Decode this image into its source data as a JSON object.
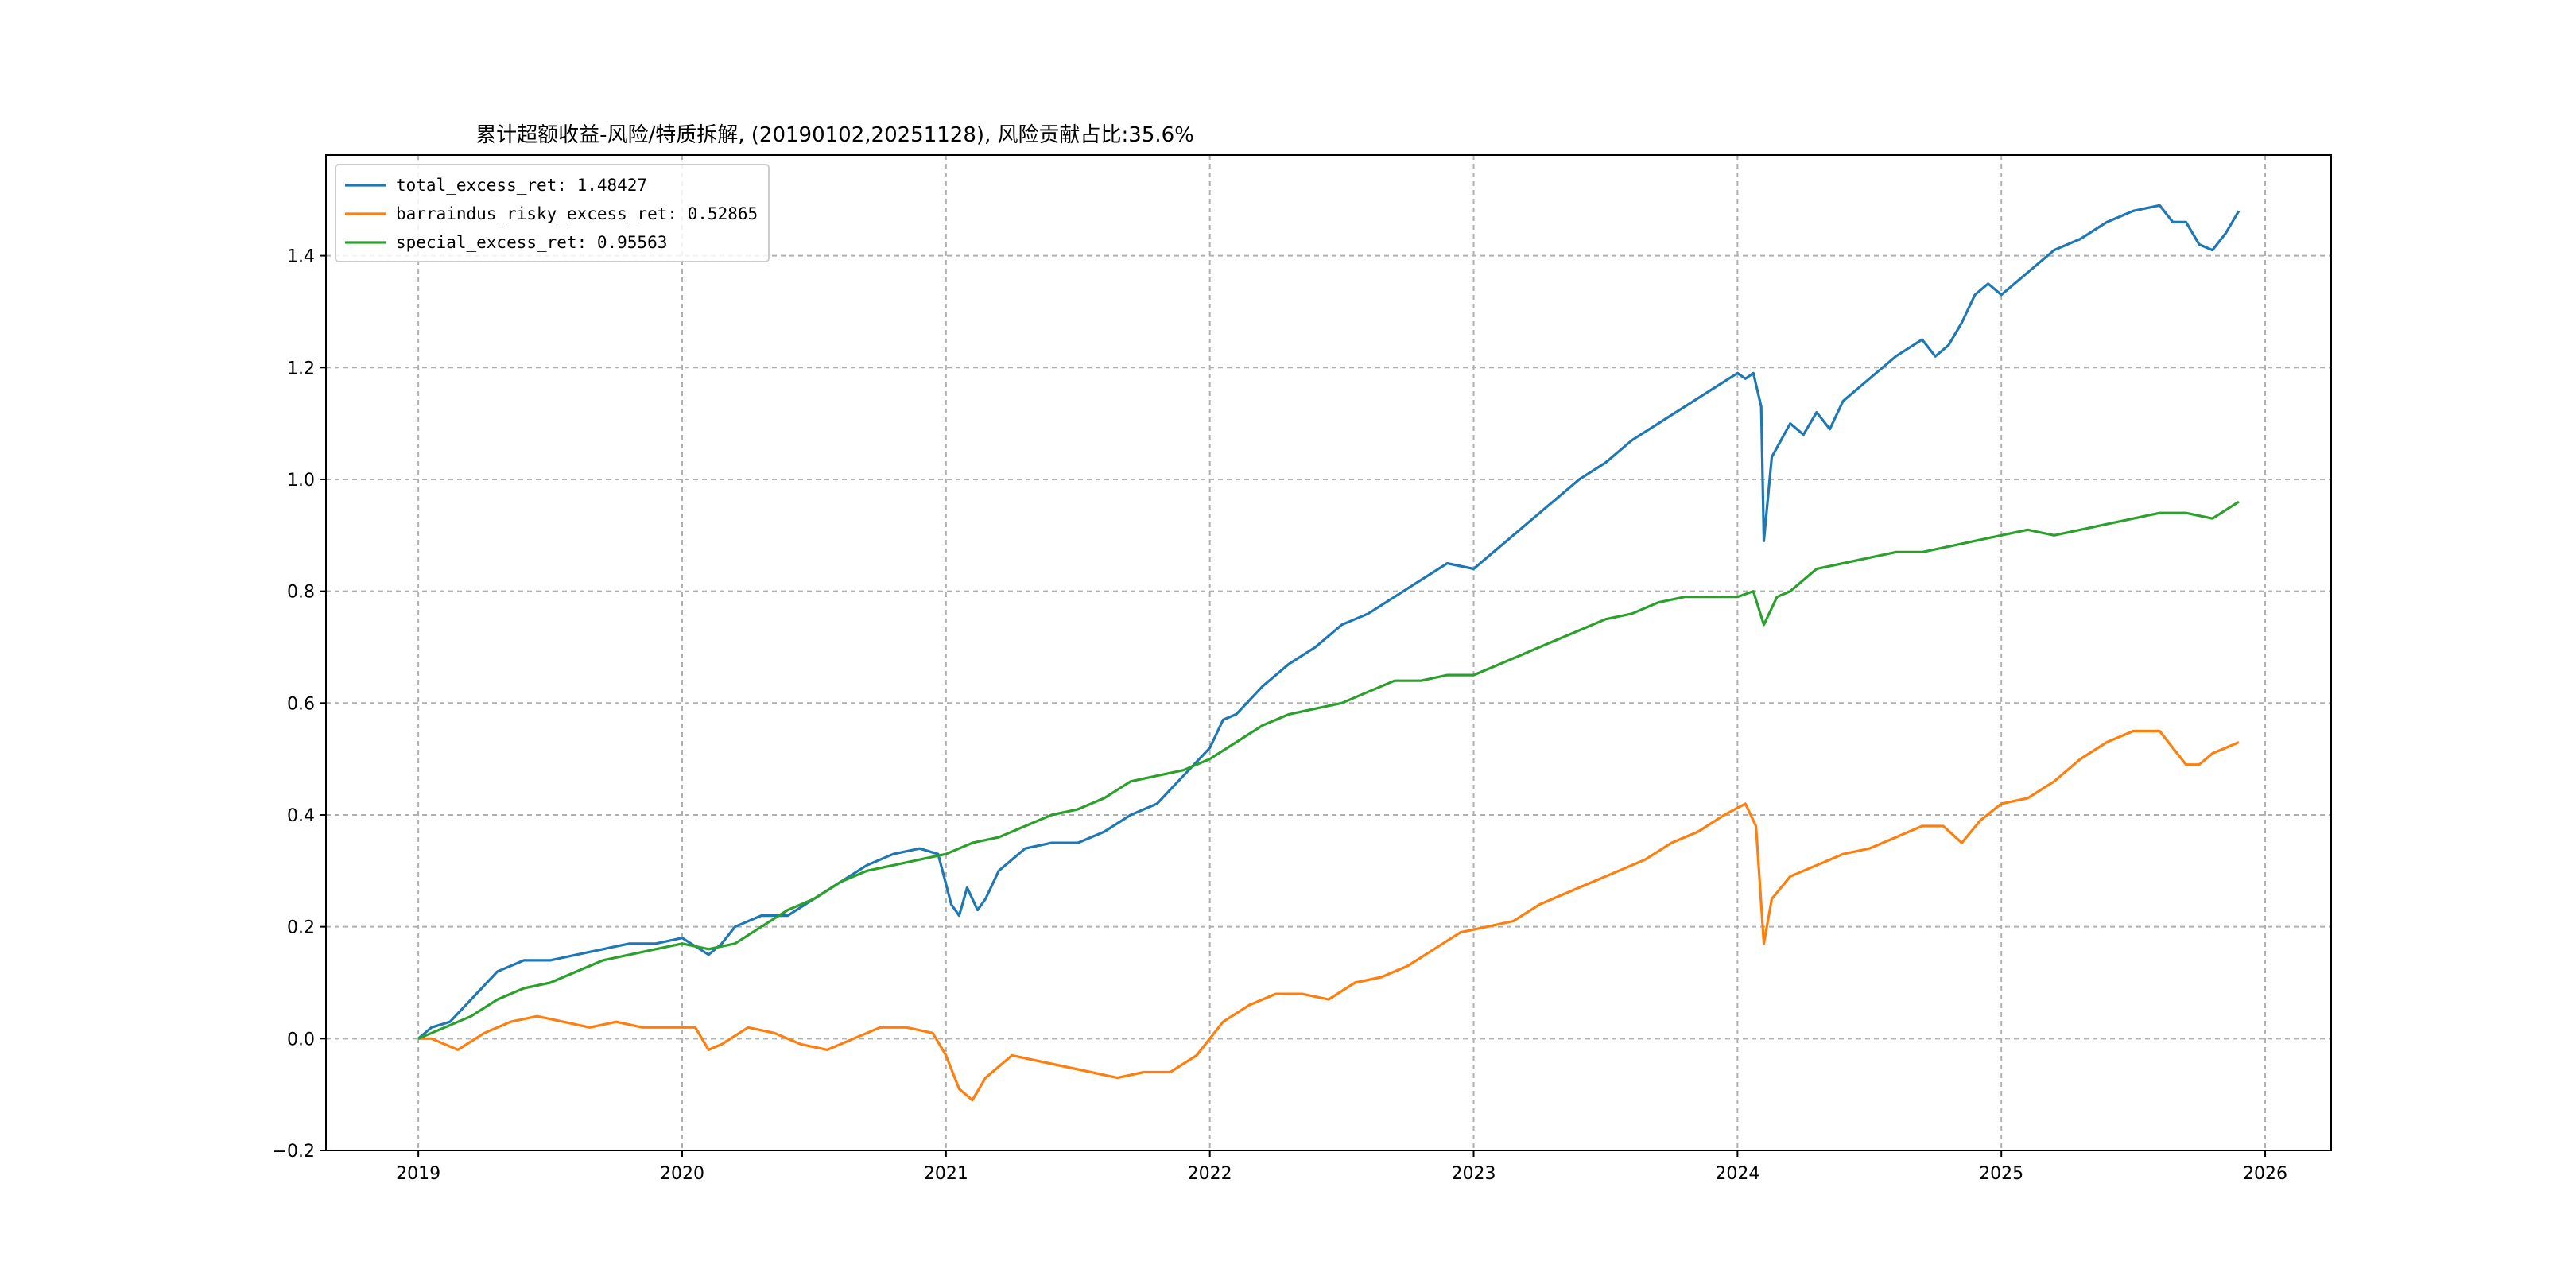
{
  "chart_data": {
    "type": "line",
    "title": "累计超额收益-风险/特质拆解, (20190102,20251128), 风险贡献占比:35.6%",
    "xlabel": "",
    "ylabel": "",
    "x_ticks": [
      "2019",
      "2020",
      "2021",
      "2022",
      "2023",
      "2024",
      "2025",
      "2026"
    ],
    "y_ticks": [
      "−0.2",
      "0.0",
      "0.2",
      "0.4",
      "0.6",
      "0.8",
      "1.0",
      "1.2",
      "1.4"
    ],
    "xlim": [
      2018.65,
      2026.25
    ],
    "ylim": [
      -0.2,
      1.58
    ],
    "grid": true,
    "legend_position": "upper-left",
    "series": [
      {
        "name": "total_excess_ret: 1.48427",
        "color": "#1f77b4",
        "x": [
          2019.0,
          2019.05,
          2019.12,
          2019.2,
          2019.3,
          2019.4,
          2019.5,
          2019.6,
          2019.7,
          2019.8,
          2019.9,
          2020.0,
          2020.1,
          2020.15,
          2020.2,
          2020.3,
          2020.4,
          2020.5,
          2020.6,
          2020.7,
          2020.8,
          2020.9,
          2020.97,
          2021.02,
          2021.05,
          2021.08,
          2021.12,
          2021.15,
          2021.2,
          2021.3,
          2021.4,
          2021.5,
          2021.6,
          2021.7,
          2021.8,
          2021.9,
          2022.0,
          2022.05,
          2022.1,
          2022.2,
          2022.3,
          2022.4,
          2022.5,
          2022.6,
          2022.7,
          2022.8,
          2022.9,
          2023.0,
          2023.05,
          2023.1,
          2023.2,
          2023.3,
          2023.4,
          2023.5,
          2023.6,
          2023.7,
          2023.8,
          2023.9,
          2024.0,
          2024.03,
          2024.06,
          2024.09,
          2024.1,
          2024.13,
          2024.2,
          2024.25,
          2024.3,
          2024.35,
          2024.4,
          2024.5,
          2024.6,
          2024.7,
          2024.75,
          2024.8,
          2024.85,
          2024.9,
          2024.95,
          2025.0,
          2025.1,
          2025.2,
          2025.3,
          2025.4,
          2025.5,
          2025.6,
          2025.65,
          2025.7,
          2025.75,
          2025.8,
          2025.85,
          2025.9
        ],
        "y": [
          0.0,
          0.02,
          0.03,
          0.07,
          0.12,
          0.14,
          0.14,
          0.15,
          0.16,
          0.17,
          0.17,
          0.18,
          0.15,
          0.17,
          0.2,
          0.22,
          0.22,
          0.25,
          0.28,
          0.31,
          0.33,
          0.34,
          0.33,
          0.24,
          0.22,
          0.27,
          0.23,
          0.25,
          0.3,
          0.34,
          0.35,
          0.35,
          0.37,
          0.4,
          0.42,
          0.47,
          0.52,
          0.57,
          0.58,
          0.63,
          0.67,
          0.7,
          0.74,
          0.76,
          0.79,
          0.82,
          0.85,
          0.84,
          0.86,
          0.88,
          0.92,
          0.96,
          1.0,
          1.03,
          1.07,
          1.1,
          1.13,
          1.16,
          1.19,
          1.18,
          1.19,
          1.13,
          0.89,
          1.04,
          1.1,
          1.08,
          1.12,
          1.09,
          1.14,
          1.18,
          1.22,
          1.25,
          1.22,
          1.24,
          1.28,
          1.33,
          1.35,
          1.33,
          1.37,
          1.41,
          1.43,
          1.46,
          1.48,
          1.49,
          1.46,
          1.46,
          1.42,
          1.41,
          1.44,
          1.48
        ]
      },
      {
        "name": "barraindus_risky_excess_ret: 0.52865",
        "color": "#ff7f0e",
        "x": [
          2019.0,
          2019.05,
          2019.15,
          2019.25,
          2019.35,
          2019.45,
          2019.55,
          2019.65,
          2019.75,
          2019.85,
          2019.95,
          2020.05,
          2020.1,
          2020.15,
          2020.25,
          2020.35,
          2020.45,
          2020.55,
          2020.65,
          2020.75,
          2020.85,
          2020.95,
          2021.0,
          2021.05,
          2021.1,
          2021.15,
          2021.25,
          2021.35,
          2021.45,
          2021.55,
          2021.65,
          2021.75,
          2021.85,
          2021.95,
          2022.05,
          2022.15,
          2022.25,
          2022.35,
          2022.45,
          2022.55,
          2022.65,
          2022.75,
          2022.85,
          2022.95,
          2023.05,
          2023.15,
          2023.25,
          2023.35,
          2023.45,
          2023.55,
          2023.65,
          2023.75,
          2023.85,
          2023.95,
          2024.03,
          2024.07,
          2024.1,
          2024.13,
          2024.2,
          2024.3,
          2024.4,
          2024.5,
          2024.6,
          2024.7,
          2024.78,
          2024.85,
          2024.92,
          2025.0,
          2025.1,
          2025.2,
          2025.3,
          2025.4,
          2025.5,
          2025.6,
          2025.65,
          2025.7,
          2025.75,
          2025.8,
          2025.85,
          2025.9
        ],
        "y": [
          0.0,
          0.0,
          -0.02,
          0.01,
          0.03,
          0.04,
          0.03,
          0.02,
          0.03,
          0.02,
          0.02,
          0.02,
          -0.02,
          -0.01,
          0.02,
          0.01,
          -0.01,
          -0.02,
          0.0,
          0.02,
          0.02,
          0.01,
          -0.03,
          -0.09,
          -0.11,
          -0.07,
          -0.03,
          -0.04,
          -0.05,
          -0.06,
          -0.07,
          -0.06,
          -0.06,
          -0.03,
          0.03,
          0.06,
          0.08,
          0.08,
          0.07,
          0.1,
          0.11,
          0.13,
          0.16,
          0.19,
          0.2,
          0.21,
          0.24,
          0.26,
          0.28,
          0.3,
          0.32,
          0.35,
          0.37,
          0.4,
          0.42,
          0.38,
          0.17,
          0.25,
          0.29,
          0.31,
          0.33,
          0.34,
          0.36,
          0.38,
          0.38,
          0.35,
          0.39,
          0.42,
          0.43,
          0.46,
          0.5,
          0.53,
          0.55,
          0.55,
          0.52,
          0.49,
          0.49,
          0.51,
          0.52,
          0.53
        ]
      },
      {
        "name": "special_excess_ret: 0.95563",
        "color": "#2ca02c",
        "x": [
          2019.0,
          2019.1,
          2019.2,
          2019.3,
          2019.4,
          2019.5,
          2019.6,
          2019.7,
          2019.8,
          2019.9,
          2020.0,
          2020.1,
          2020.2,
          2020.3,
          2020.4,
          2020.5,
          2020.6,
          2020.7,
          2020.8,
          2020.9,
          2021.0,
          2021.1,
          2021.2,
          2021.3,
          2021.4,
          2021.5,
          2021.6,
          2021.7,
          2021.8,
          2021.9,
          2022.0,
          2022.1,
          2022.2,
          2022.3,
          2022.4,
          2022.5,
          2022.6,
          2022.7,
          2022.8,
          2022.9,
          2023.0,
          2023.1,
          2023.2,
          2023.3,
          2023.4,
          2023.5,
          2023.6,
          2023.7,
          2023.8,
          2023.9,
          2024.0,
          2024.06,
          2024.1,
          2024.15,
          2024.2,
          2024.3,
          2024.4,
          2024.5,
          2024.6,
          2024.7,
          2024.8,
          2024.9,
          2025.0,
          2025.1,
          2025.2,
          2025.3,
          2025.4,
          2025.5,
          2025.6,
          2025.7,
          2025.8,
          2025.9
        ],
        "y": [
          0.0,
          0.02,
          0.04,
          0.07,
          0.09,
          0.1,
          0.12,
          0.14,
          0.15,
          0.16,
          0.17,
          0.16,
          0.17,
          0.2,
          0.23,
          0.25,
          0.28,
          0.3,
          0.31,
          0.32,
          0.33,
          0.35,
          0.36,
          0.38,
          0.4,
          0.41,
          0.43,
          0.46,
          0.47,
          0.48,
          0.5,
          0.53,
          0.56,
          0.58,
          0.59,
          0.6,
          0.62,
          0.64,
          0.64,
          0.65,
          0.65,
          0.67,
          0.69,
          0.71,
          0.73,
          0.75,
          0.76,
          0.78,
          0.79,
          0.79,
          0.79,
          0.8,
          0.74,
          0.79,
          0.8,
          0.84,
          0.85,
          0.86,
          0.87,
          0.87,
          0.88,
          0.89,
          0.9,
          0.91,
          0.9,
          0.91,
          0.92,
          0.93,
          0.94,
          0.94,
          0.93,
          0.96
        ]
      }
    ]
  }
}
